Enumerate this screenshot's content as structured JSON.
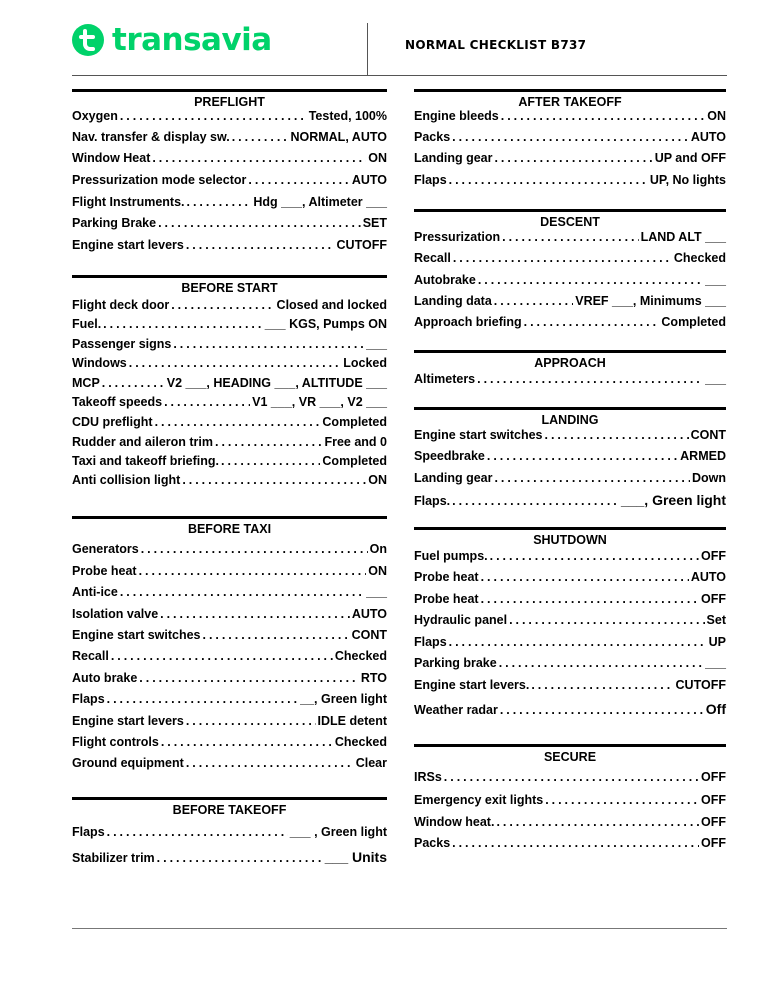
{
  "header": {
    "logo_text": "transavia",
    "title": "NORMAL CHECKLIST B737",
    "brand_color": "#00d26a"
  },
  "sections": [
    {
      "title": "PREFLIGHT",
      "items": [
        {
          "label": "Oxygen",
          "value": "Tested, 100%"
        },
        {
          "label": "Nav. transfer & display sw.",
          "value": "NORMAL, AUTO"
        },
        {
          "label": "Window Heat",
          "value": "ON"
        },
        {
          "label": "Pressurization mode selector",
          "value": "AUTO"
        },
        {
          "label": "Flight Instruments.",
          "value": "Hdg ___, Altimeter ___"
        },
        {
          "label": "Parking Brake",
          "value": "SET"
        },
        {
          "label": "Engine start levers",
          "value": "CUTOFF"
        }
      ]
    },
    {
      "title": "BEFORE START",
      "items": [
        {
          "label": "Flight deck door",
          "value": "Closed and locked"
        },
        {
          "label": "Fuel.",
          "value": "___ KGS, Pumps ON"
        },
        {
          "label": "Passenger signs",
          "value": "___"
        },
        {
          "label": "Windows",
          "value": "Locked"
        },
        {
          "label": "MCP",
          "value": "V2 ___, HEADING ___, ALTITUDE ___"
        },
        {
          "label": "Takeoff speeds",
          "value": "V1 ___, VR ___, V2 ___"
        },
        {
          "label": "CDU preflight",
          "value": "Completed"
        },
        {
          "label": "Rudder and aileron trim",
          "value": "Free and 0"
        },
        {
          "label": "Taxi and takeoff briefing.",
          "value": "Completed"
        },
        {
          "label": "Anti collision light",
          "value": "ON"
        }
      ]
    },
    {
      "title": "BEFORE TAXI",
      "items": [
        {
          "label": "Generators",
          "value": "On"
        },
        {
          "label": "Probe heat",
          "value": "ON"
        },
        {
          "label": "Anti-ice",
          "value": "___"
        },
        {
          "label": "Isolation valve",
          "value": "AUTO"
        },
        {
          "label": "Engine start switches",
          "value": "CONT"
        },
        {
          "label": "Recall",
          "value": "Checked"
        },
        {
          "label": "Auto brake",
          "value": "RTO"
        },
        {
          "label": "Flaps",
          "value": "__, Green light"
        },
        {
          "label": "Engine start levers",
          "value": "IDLE detent"
        },
        {
          "label": "Flight controls",
          "value": "Checked"
        },
        {
          "label": "Ground equipment",
          "value": "Clear"
        }
      ]
    },
    {
      "title": "BEFORE TAKEOFF",
      "items": [
        {
          "label": "Flaps",
          "value": "___ , Green light"
        },
        {
          "label": "Stabilizer trim",
          "value": "___ Units"
        }
      ]
    },
    {
      "title": "AFTER TAKEOFF",
      "items": [
        {
          "label": "Engine bleeds",
          "value": "ON"
        },
        {
          "label": "Packs",
          "value": "AUTO"
        },
        {
          "label": "Landing gear",
          "value": "UP and OFF"
        },
        {
          "label": "Flaps",
          "value": "UP, No lights"
        }
      ]
    },
    {
      "title": "DESCENT",
      "items": [
        {
          "label": "Pressurization",
          "value": "LAND ALT ___"
        },
        {
          "label": "Recall",
          "value": "Checked"
        },
        {
          "label": "Autobrake",
          "value": "___"
        },
        {
          "label": "Landing data",
          "value": "VREF ___, Minimums ___"
        },
        {
          "label": "Approach briefing",
          "value": "Completed"
        }
      ]
    },
    {
      "title": "APPROACH",
      "items": [
        {
          "label": "Altimeters",
          "value": "___"
        }
      ]
    },
    {
      "title": "LANDING",
      "items": [
        {
          "label": "Engine start switches",
          "value": "CONT"
        },
        {
          "label": "Speedbrake",
          "value": "ARMED"
        },
        {
          "label": "Landing gear",
          "value": "Down"
        },
        {
          "label": "Flaps.",
          "value": "___, Green light"
        }
      ]
    },
    {
      "title": "SHUTDOWN",
      "items": [
        {
          "label": "Fuel pumps.",
          "value": "OFF"
        },
        {
          "label": "Probe heat",
          "value": "AUTO"
        },
        {
          "label": "Probe heat",
          "value": "OFF"
        },
        {
          "label": "Hydraulic panel",
          "value": "Set"
        },
        {
          "label": "Flaps",
          "value": "UP"
        },
        {
          "label": "Parking brake",
          "value": "___"
        },
        {
          "label": "Engine start levers.",
          "value": "CUTOFF"
        },
        {
          "label": "Weather radar",
          "value": "Off"
        }
      ]
    },
    {
      "title": "SECURE",
      "items": [
        {
          "label": "IRSs",
          "value": "OFF"
        },
        {
          "label": "Emergency exit lights",
          "value": "OFF"
        },
        {
          "label": "Window heat.",
          "value": "OFF"
        },
        {
          "label": "Packs",
          "value": "OFF"
        }
      ]
    }
  ]
}
